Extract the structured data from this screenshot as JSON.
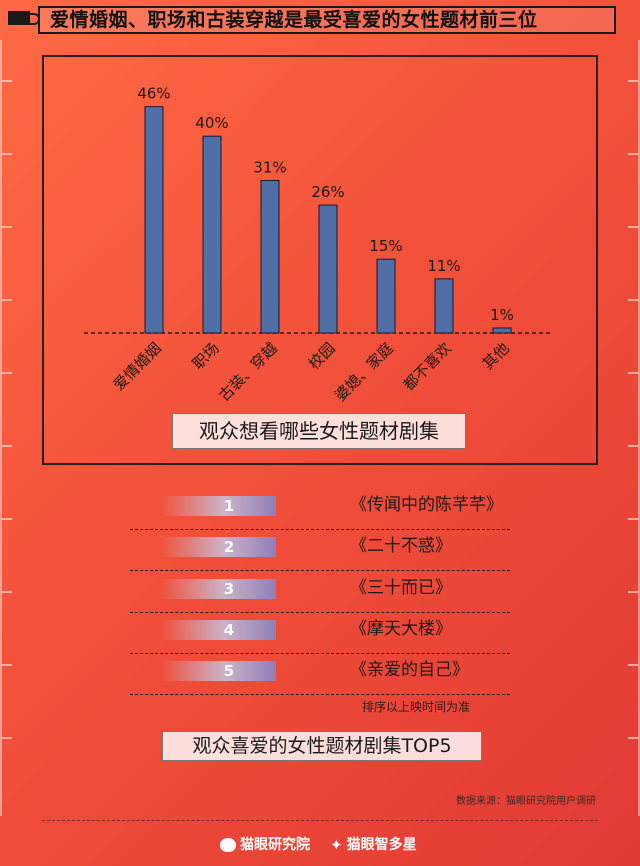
{
  "header": {
    "title": "爱情婚姻、职场和古装穿越是最受喜爱的女性题材前三位"
  },
  "chart_data": {
    "type": "bar",
    "title": "观众想看哪些女性题材剧集",
    "categories": [
      "爱情婚姻",
      "职场",
      "古装、穿越",
      "校园",
      "婆媳、家庭",
      "都不喜欢",
      "其他"
    ],
    "values": [
      46,
      40,
      31,
      26,
      15,
      11,
      1
    ],
    "value_labels": [
      "46%",
      "40%",
      "31%",
      "26%",
      "15%",
      "11%",
      "1%"
    ],
    "unit": "%",
    "ylim": [
      0,
      50
    ],
    "grid": false,
    "legend": "none",
    "bar_color": "#4f6fa6"
  },
  "ranking": {
    "items": [
      {
        "rank": "1",
        "title": "《传闻中的陈芊芊》"
      },
      {
        "rank": "2",
        "title": "《二十不惑》"
      },
      {
        "rank": "3",
        "title": "《三十而已》"
      },
      {
        "rank": "4",
        "title": "《摩天大楼》"
      },
      {
        "rank": "5",
        "title": "《亲爱的自己》"
      }
    ],
    "note": "排序以上映时间为准",
    "caption": "观众喜爱的女性题材剧集TOP5"
  },
  "source": "数据来源：猫眼研究院用户调研",
  "footer": {
    "brand_left": "猫眼研究院",
    "brand_right": "猫眼智多星",
    "icon_left": "cat-logo-icon",
    "icon_right": "star-logo-icon"
  },
  "colors": {
    "background": "#f2513a",
    "bar": "#4f6fa6",
    "rank_badge": "#8f7fb8"
  }
}
